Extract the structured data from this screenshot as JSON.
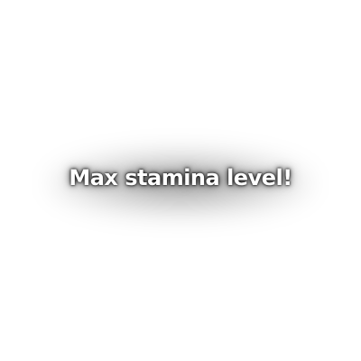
{
  "notification": {
    "text": "Max stamina level!"
  }
}
